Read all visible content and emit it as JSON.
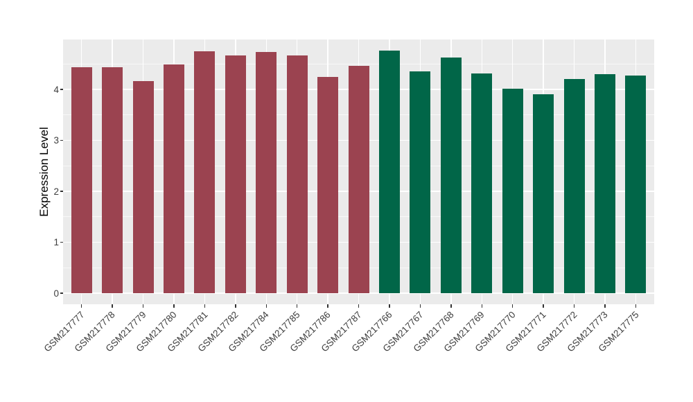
{
  "chart_data": {
    "type": "bar",
    "title": "",
    "xlabel": "",
    "ylabel": "Expression Level",
    "categories": [
      "GSM217777",
      "GSM217778",
      "GSM217779",
      "GSM217780",
      "GSM217781",
      "GSM217782",
      "GSM217784",
      "GSM217785",
      "GSM217786",
      "GSM217787",
      "GSM217766",
      "GSM217767",
      "GSM217768",
      "GSM217769",
      "GSM217770",
      "GSM217771",
      "GSM217772",
      "GSM217773",
      "GSM217775"
    ],
    "values": [
      4.43,
      4.43,
      4.17,
      4.49,
      4.75,
      4.67,
      4.73,
      4.67,
      4.24,
      4.46,
      4.76,
      4.35,
      4.63,
      4.31,
      4.01,
      3.9,
      4.2,
      4.3,
      4.27
    ],
    "bar_colors": [
      "#9B4350",
      "#9B4350",
      "#9B4350",
      "#9B4350",
      "#9B4350",
      "#9B4350",
      "#9B4350",
      "#9B4350",
      "#9B4350",
      "#9B4350",
      "#016648",
      "#016648",
      "#016648",
      "#016648",
      "#016648",
      "#016648",
      "#016648",
      "#016648",
      "#016648"
    ],
    "group_colors": {
      "left_group": "#9B4350",
      "right_group": "#016648"
    },
    "yticks": [
      0,
      1,
      2,
      3,
      4
    ],
    "ylim": [
      -0.22,
      4.98
    ],
    "grid": {
      "panel_bg": "#EBEBEB",
      "major_color": "#FFFFFF",
      "minor_color": "#FFFFFF",
      "minor_step": 0.5,
      "vertical_lines": "at-category-centers"
    },
    "legend": "none"
  }
}
